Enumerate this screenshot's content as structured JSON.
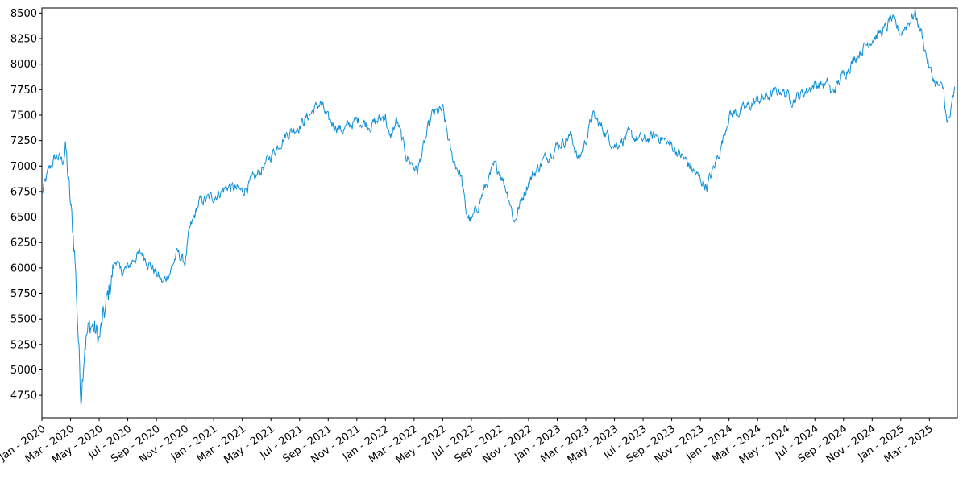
{
  "chart_data": {
    "type": "line",
    "title": "",
    "xlabel": "",
    "ylabel": "",
    "x_start": "2020-01",
    "x_end": "2025-04",
    "ylim": [
      4530,
      8550
    ],
    "yticks": [
      4750,
      5000,
      5250,
      5500,
      5750,
      6000,
      6250,
      6500,
      6750,
      7000,
      7250,
      7500,
      7750,
      8000,
      8250,
      8500
    ],
    "xticks": [
      "Jan - 2020",
      "Mar - 2020",
      "May - 2020",
      "Jul - 2020",
      "Sep - 2020",
      "Nov - 2020",
      "Jan - 2021",
      "Mar - 2021",
      "May - 2021",
      "Jul - 2021",
      "Sep - 2021",
      "Nov - 2021",
      "Jan - 2022",
      "Mar - 2022",
      "May - 2022",
      "Jul - 2022",
      "Sep - 2022",
      "Nov - 2022",
      "Jan - 2023",
      "Mar - 2023",
      "May - 2023",
      "Jul - 2023",
      "Sep - 2023",
      "Nov - 2023",
      "Jan - 2024",
      "Mar - 2024",
      "May - 2024",
      "Jul - 2024",
      "Sep - 2024",
      "Nov - 2024",
      "Jan - 2025",
      "Mar - 2025"
    ],
    "grid": false,
    "series": [
      {
        "color": "#0e8fd6",
        "x": [
          "2020-01-01",
          "2020-01-15",
          "2020-02-01",
          "2020-02-15",
          "2020-02-21",
          "2020-03-01",
          "2020-03-10",
          "2020-03-16",
          "2020-03-23",
          "2020-04-01",
          "2020-04-15",
          "2020-05-01",
          "2020-05-15",
          "2020-06-01",
          "2020-06-08",
          "2020-06-15",
          "2020-07-01",
          "2020-07-15",
          "2020-08-01",
          "2020-08-15",
          "2020-09-01",
          "2020-09-15",
          "2020-10-01",
          "2020-10-15",
          "2020-11-01",
          "2020-11-10",
          "2020-12-01",
          "2021-01-01",
          "2021-02-01",
          "2021-03-01",
          "2021-04-01",
          "2021-05-01",
          "2021-06-01",
          "2021-07-01",
          "2021-08-01",
          "2021-08-15",
          "2021-09-01",
          "2021-10-01",
          "2021-11-01",
          "2021-12-01",
          "2022-01-01",
          "2022-01-10",
          "2022-01-25",
          "2022-02-15",
          "2022-03-08",
          "2022-03-25",
          "2022-04-08",
          "2022-05-01",
          "2022-05-20",
          "2022-06-10",
          "2022-06-20",
          "2022-07-01",
          "2022-08-01",
          "2022-08-20",
          "2022-09-01",
          "2022-09-20",
          "2022-10-01",
          "2022-10-15",
          "2022-11-01",
          "2022-12-01",
          "2023-01-01",
          "2023-02-01",
          "2023-02-15",
          "2023-03-01",
          "2023-03-15",
          "2023-04-01",
          "2023-05-01",
          "2023-06-01",
          "2023-07-01",
          "2023-08-01",
          "2023-09-01",
          "2023-10-01",
          "2023-10-25",
          "2023-11-15",
          "2023-12-01",
          "2023-12-15",
          "2024-01-01",
          "2024-02-01",
          "2024-03-01",
          "2024-04-01",
          "2024-04-19",
          "2024-05-15",
          "2024-06-01",
          "2024-07-01",
          "2024-08-01",
          "2024-08-05",
          "2024-09-01",
          "2024-10-01",
          "2024-11-01",
          "2024-12-01",
          "2024-12-10",
          "2025-01-01",
          "2025-01-15",
          "2025-02-01",
          "2025-02-15",
          "2025-03-01",
          "2025-03-15",
          "2025-04-01",
          "2025-04-08",
          "2025-04-15",
          "2025-04-25"
        ],
        "y": [
          6720,
          6950,
          7100,
          7050,
          7170,
          6600,
          6150,
          5500,
          4750,
          5300,
          5450,
          5300,
          5600,
          6000,
          6100,
          5950,
          6000,
          6100,
          6150,
          6050,
          5950,
          5850,
          5980,
          6150,
          6050,
          6350,
          6650,
          6700,
          6800,
          6750,
          6900,
          7100,
          7300,
          7400,
          7550,
          7620,
          7450,
          7350,
          7450,
          7400,
          7500,
          7250,
          7450,
          7100,
          6950,
          7250,
          7500,
          7550,
          7100,
          6900,
          6550,
          6450,
          6800,
          7000,
          6950,
          6700,
          6450,
          6650,
          6850,
          7050,
          7200,
          7300,
          7050,
          7250,
          7500,
          7400,
          7200,
          7300,
          7250,
          7300,
          7200,
          7050,
          6900,
          6800,
          7000,
          7200,
          7500,
          7550,
          7650,
          7700,
          7750,
          7650,
          7700,
          7800,
          7800,
          7700,
          7900,
          8100,
          8250,
          8350,
          8450,
          8300,
          8400,
          8500,
          8300,
          7950,
          7800,
          7750,
          7400,
          7500,
          7750
        ]
      }
    ]
  }
}
